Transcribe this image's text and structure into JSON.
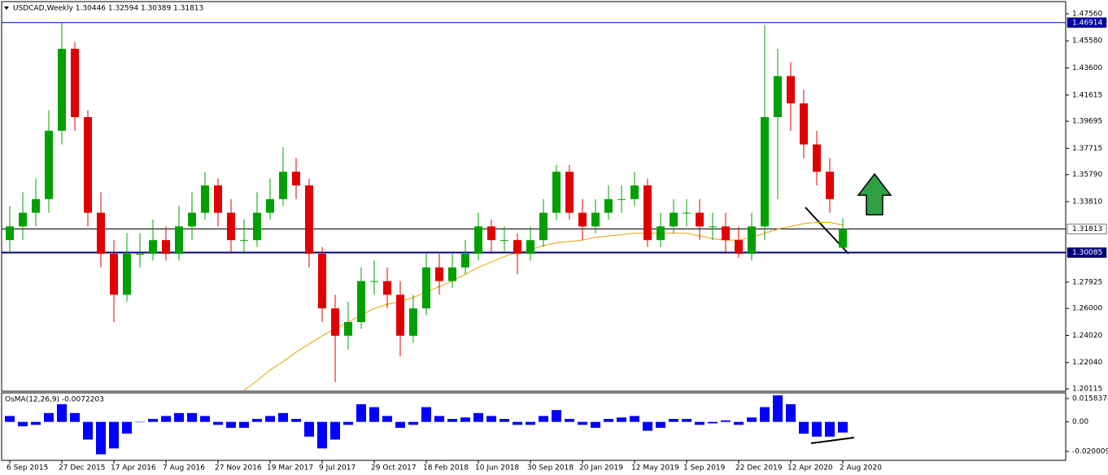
{
  "chart_data": {
    "type": "candlestick",
    "title": "USDCAD,Weekly  1.30446 1.32594 1.30389 1.31813",
    "categories": [
      "6 Sep 2015",
      null,
      null,
      null,
      "27 Dec 2015",
      null,
      null,
      null,
      "17 Apr 2016",
      null,
      null,
      null,
      "7 Aug 2016",
      null,
      null,
      null,
      "27 Nov 2016",
      null,
      null,
      null,
      "19 Mar 2017",
      null,
      null,
      null,
      "9 Jul 2017",
      null,
      null,
      null,
      "29 Oct 2017",
      null,
      null,
      null,
      "18 Feb 2018",
      null,
      null,
      null,
      "10 Jun 2018",
      null,
      null,
      null,
      "30 Sep 2018",
      null,
      null,
      null,
      "20 Jan 2019",
      null,
      null,
      null,
      "12 May 2019",
      null,
      null,
      null,
      "1 Sep 2019",
      null,
      null,
      null,
      "22 Dec 2019",
      null,
      null,
      null,
      "12 Apr 2020",
      null,
      null,
      null,
      "2 Aug 2020"
    ],
    "open": [
      1.31,
      1.32,
      1.33,
      1.34,
      1.39,
      1.45,
      1.4,
      1.33,
      1.3,
      1.27,
      1.3,
      1.3,
      1.31,
      1.3,
      1.32,
      1.33,
      1.35,
      1.33,
      1.31,
      1.31,
      1.33,
      1.34,
      1.36,
      1.35,
      1.3,
      1.26,
      1.24,
      1.25,
      1.28,
      1.28,
      1.27,
      1.24,
      1.26,
      1.29,
      1.28,
      1.29,
      1.3,
      1.32,
      1.31,
      1.31,
      1.3,
      1.31,
      1.33,
      1.36,
      1.33,
      1.32,
      1.33,
      1.34,
      1.34,
      1.35,
      1.31,
      1.32,
      1.33,
      1.33,
      1.32,
      1.32,
      1.31,
      1.3,
      1.32,
      1.4,
      1.43,
      1.41,
      1.38,
      1.36,
      1.30446
    ],
    "high": [
      1.335,
      1.345,
      1.355,
      1.405,
      1.46914,
      1.455,
      1.405,
      1.345,
      1.31,
      1.315,
      1.315,
      1.325,
      1.32,
      1.335,
      1.345,
      1.36,
      1.355,
      1.34,
      1.325,
      1.345,
      1.355,
      1.378,
      1.37,
      1.355,
      1.305,
      1.27,
      1.265,
      1.29,
      1.295,
      1.29,
      1.28,
      1.27,
      1.3,
      1.3,
      1.3,
      1.31,
      1.33,
      1.325,
      1.32,
      1.315,
      1.32,
      1.34,
      1.365,
      1.365,
      1.34,
      1.34,
      1.35,
      1.35,
      1.36,
      1.355,
      1.33,
      1.34,
      1.34,
      1.34,
      1.33,
      1.33,
      1.32,
      1.33,
      1.467,
      1.45,
      1.44,
      1.42,
      1.39,
      1.37,
      1.32594
    ],
    "low": [
      1.3,
      1.31,
      1.32,
      1.33,
      1.38,
      1.39,
      1.32,
      1.29,
      1.25,
      1.265,
      1.29,
      1.295,
      1.295,
      1.295,
      1.31,
      1.325,
      1.32,
      1.3,
      1.3,
      1.305,
      1.325,
      1.335,
      1.34,
      1.29,
      1.25,
      1.206,
      1.23,
      1.245,
      1.27,
      1.26,
      1.225,
      1.235,
      1.255,
      1.27,
      1.275,
      1.285,
      1.295,
      1.3,
      1.3,
      1.285,
      1.295,
      1.305,
      1.325,
      1.325,
      1.31,
      1.315,
      1.325,
      1.33,
      1.335,
      1.305,
      1.305,
      1.315,
      1.32,
      1.31,
      1.31,
      1.3,
      1.297,
      1.295,
      1.31,
      1.34,
      1.39,
      1.37,
      1.35,
      1.33,
      1.30389
    ],
    "close": [
      1.32,
      1.33,
      1.34,
      1.39,
      1.45,
      1.4,
      1.33,
      1.3,
      1.27,
      1.3,
      1.3,
      1.31,
      1.3,
      1.32,
      1.33,
      1.35,
      1.33,
      1.31,
      1.31,
      1.33,
      1.34,
      1.36,
      1.35,
      1.3,
      1.26,
      1.24,
      1.25,
      1.28,
      1.28,
      1.27,
      1.24,
      1.26,
      1.29,
      1.28,
      1.29,
      1.3,
      1.32,
      1.31,
      1.31,
      1.3,
      1.31,
      1.33,
      1.36,
      1.33,
      1.32,
      1.33,
      1.34,
      1.34,
      1.35,
      1.31,
      1.32,
      1.33,
      1.33,
      1.32,
      1.32,
      1.31,
      1.3,
      1.32,
      1.4,
      1.43,
      1.41,
      1.38,
      1.36,
      1.34,
      1.31813
    ],
    "up_color": "#00a000",
    "down_color": "#e00000",
    "ylim": [
      1.1994,
      1.4845
    ],
    "yticks": [
      {
        "value": 1.4756,
        "label": "1.47560"
      },
      {
        "value": 1.4558,
        "label": "1.45580"
      },
      {
        "value": 1.436,
        "label": "1.43600"
      },
      1.41615,
      1.39695,
      1.37715,
      {
        "value": 1.3579,
        "label": "1.35790"
      },
      {
        "value": 1.3381,
        "label": "1.33810"
      },
      1.27925,
      {
        "value": 1.26,
        "label": "1.26000"
      },
      {
        "value": 1.2402,
        "label": "1.24020"
      },
      {
        "value": 1.2204,
        "label": "1.22040"
      },
      1.20115
    ],
    "hlines": [
      {
        "value": 1.46914,
        "color": "#0000b0"
      },
      {
        "value": 1.31813,
        "color": "#000000"
      },
      {
        "value": 1.30085,
        "color": "#000080"
      }
    ],
    "ma": {
      "color": "#e8a000",
      "values": [
        null,
        null,
        null,
        null,
        null,
        null,
        null,
        null,
        null,
        null,
        null,
        null,
        null,
        null,
        null,
        null,
        null,
        null,
        1.2,
        1.207,
        1.215,
        1.221,
        1.228,
        1.234,
        1.24,
        1.245,
        1.25,
        1.255,
        1.26,
        1.263,
        1.265,
        1.268,
        1.272,
        1.276,
        1.28,
        1.285,
        1.29,
        1.294,
        1.298,
        1.301,
        1.303,
        1.306,
        1.308,
        1.309,
        1.31,
        1.312,
        1.313,
        1.314,
        1.315,
        1.315,
        1.315,
        1.315,
        1.315,
        1.313,
        1.311,
        1.31,
        1.31,
        1.312,
        1.315,
        1.318,
        1.32,
        1.322,
        1.323,
        1.323,
        1.321
      ]
    },
    "osma": {
      "type": "bar",
      "title": "OsMA(12,26,9) -0.0072203",
      "color": "#0000ff",
      "values": [
        0.004,
        -0.003,
        -0.002,
        0.006,
        0.012,
        0.006,
        -0.012,
        -0.022,
        -0.018,
        -0.008,
        0.0,
        0.002,
        0.004,
        0.006,
        0.006,
        0.004,
        -0.002,
        -0.004,
        -0.004,
        0.002,
        0.004,
        0.006,
        0.002,
        -0.01,
        -0.018,
        -0.012,
        -0.002,
        0.012,
        0.01,
        0.004,
        -0.004,
        -0.002,
        0.01,
        0.004,
        0.002,
        0.003,
        0.006,
        0.004,
        0.002,
        -0.002,
        -0.002,
        0.004,
        0.008,
        0.002,
        -0.002,
        -0.004,
        0.002,
        0.003,
        0.004,
        -0.006,
        -0.004,
        0.002,
        0.002,
        -0.002,
        -0.001,
        0.001,
        -0.002,
        0.003,
        0.01,
        0.018,
        0.012,
        -0.008,
        -0.01,
        -0.01,
        -0.0072203
      ],
      "ylim": [
        -0.0261,
        0.0197
      ],
      "yticks": [
        0.0158378,
        {
          "value": 0,
          "label": "0.00"
        },
        -0.0200097
      ]
    }
  }
}
